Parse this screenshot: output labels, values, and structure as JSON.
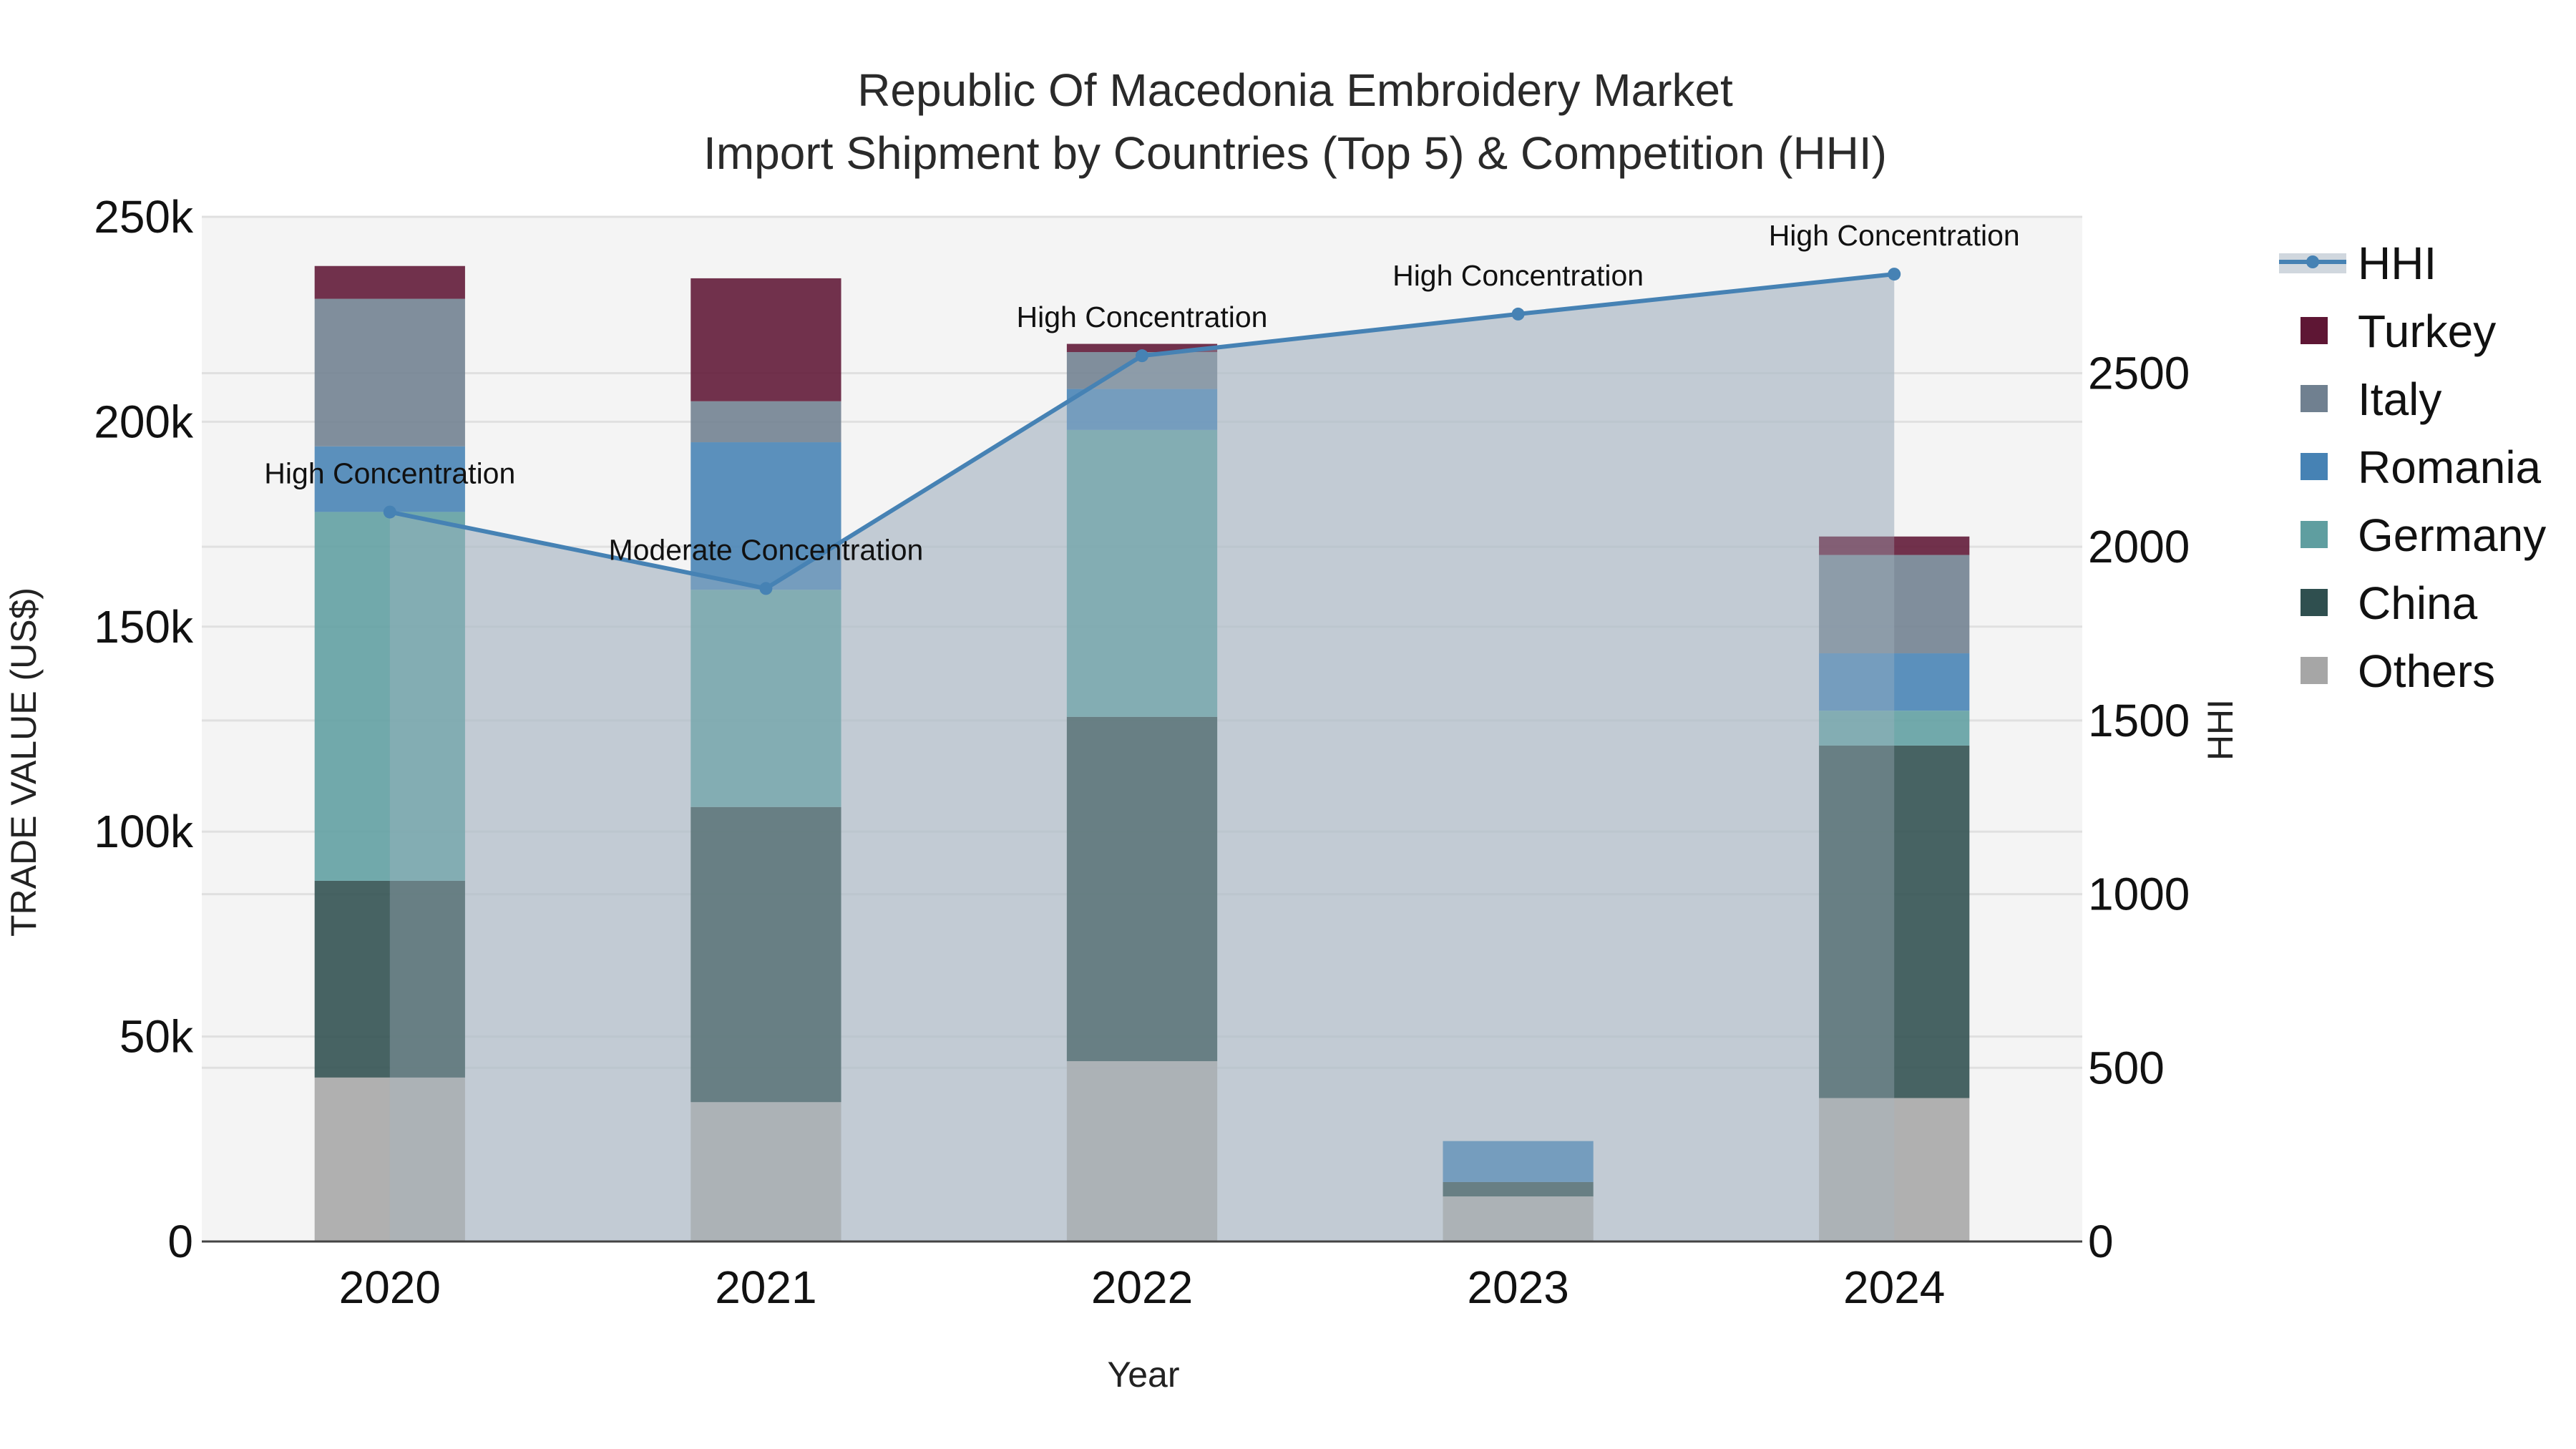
{
  "chart_data": {
    "type": "bar",
    "title_line1": "Republic Of Macedonia Embroidery Market",
    "title_line2": "Import Shipment by Countries (Top 5) & Competition (HHI)",
    "xlabel": "Year",
    "ylabel": "TRADE VALUE (US$)",
    "y2label": "HHI",
    "categories": [
      "2020",
      "2021",
      "2022",
      "2023",
      "2024"
    ],
    "ylim": [
      0,
      250000
    ],
    "y2lim": [
      0,
      2950
    ],
    "yticks": [
      {
        "value": 0,
        "label": "0"
      },
      {
        "value": 50000,
        "label": "50k"
      },
      {
        "value": 100000,
        "label": "100k"
      },
      {
        "value": 150000,
        "label": "150k"
      },
      {
        "value": 200000,
        "label": "200k"
      },
      {
        "value": 250000,
        "label": "250k"
      }
    ],
    "y2ticks": [
      {
        "value": 0,
        "label": "0"
      },
      {
        "value": 500,
        "label": "500"
      },
      {
        "value": 1000,
        "label": "1000"
      },
      {
        "value": 1500,
        "label": "1500"
      },
      {
        "value": 2000,
        "label": "2000"
      },
      {
        "value": 2500,
        "label": "2500"
      }
    ],
    "series": [
      {
        "name": "Others",
        "color": "#a6a6a6",
        "values": [
          40000,
          34000,
          44000,
          11000,
          35000
        ]
      },
      {
        "name": "China",
        "color": "#2f4f4f",
        "values": [
          48000,
          72000,
          84000,
          3500,
          86000
        ]
      },
      {
        "name": "Germany",
        "color": "#5f9ea0",
        "values": [
          90000,
          53000,
          70000,
          0,
          8500
        ]
      },
      {
        "name": "Romania",
        "color": "#4682b4",
        "values": [
          16000,
          36000,
          10000,
          10000,
          14000
        ]
      },
      {
        "name": "Italy",
        "color": "#708090",
        "values": [
          36000,
          10000,
          9000,
          0,
          24000
        ]
      },
      {
        "name": "Turkey",
        "color": "#5e1634",
        "values": [
          8000,
          30000,
          2000,
          0,
          4500
        ]
      }
    ],
    "hhi": {
      "name": "HHI",
      "color": "#4682b4",
      "values": [
        2100,
        1880,
        2550,
        2670,
        2785
      ],
      "annotations": [
        "High Concentration",
        "Moderate Concentration",
        "High Concentration",
        "High Concentration",
        "High Concentration"
      ]
    },
    "legend": [
      "HHI",
      "Turkey",
      "Italy",
      "Romania",
      "Germany",
      "China",
      "Others"
    ],
    "legend_position": "right"
  }
}
